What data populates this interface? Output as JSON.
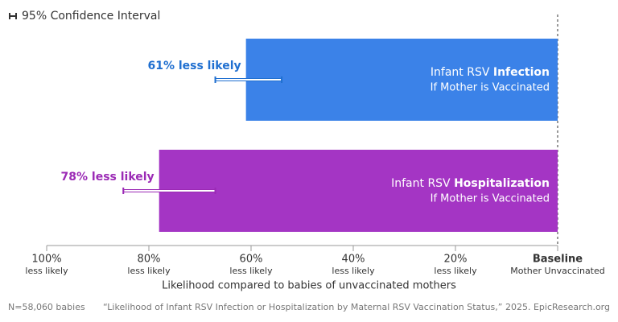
{
  "chart_data": {
    "type": "bar",
    "orientation": "horizontal",
    "legend": "95% Confidence Interval",
    "category_prefix": "Infant RSV",
    "category_note": "If Mother is Vaccinated",
    "categories": [
      "Infection",
      "Hospitalization"
    ],
    "values": [
      61,
      78
    ],
    "value_labels": [
      "61% less likely",
      "78% less likely"
    ],
    "ci_low": [
      54,
      67
    ],
    "ci_high": [
      67,
      85
    ],
    "colors": [
      "#3b82e8",
      "#a435c4"
    ],
    "label_colors": [
      "#1f6fd0",
      "#9b2ab5"
    ],
    "xlim": [
      100,
      0
    ],
    "xticks": [
      {
        "value": 100,
        "label": "100%",
        "sublabel": "less likely"
      },
      {
        "value": 80,
        "label": "80%",
        "sublabel": "less likely"
      },
      {
        "value": 60,
        "label": "60%",
        "sublabel": "less likely"
      },
      {
        "value": 40,
        "label": "40%",
        "sublabel": "less likely"
      },
      {
        "value": 20,
        "label": "20%",
        "sublabel": "less likely"
      },
      {
        "value": 0,
        "label": "Baseline",
        "sublabel": "Mother Unvaccinated"
      }
    ],
    "xlabel": "Likelihood compared to babies of unvaccinated mothers",
    "note": "N=58,060 babies",
    "source": "“Likelihood of Infant RSV Infection or Hospitalization by Maternal RSV Vaccination Status,” 2025. EpicResearch.org"
  }
}
